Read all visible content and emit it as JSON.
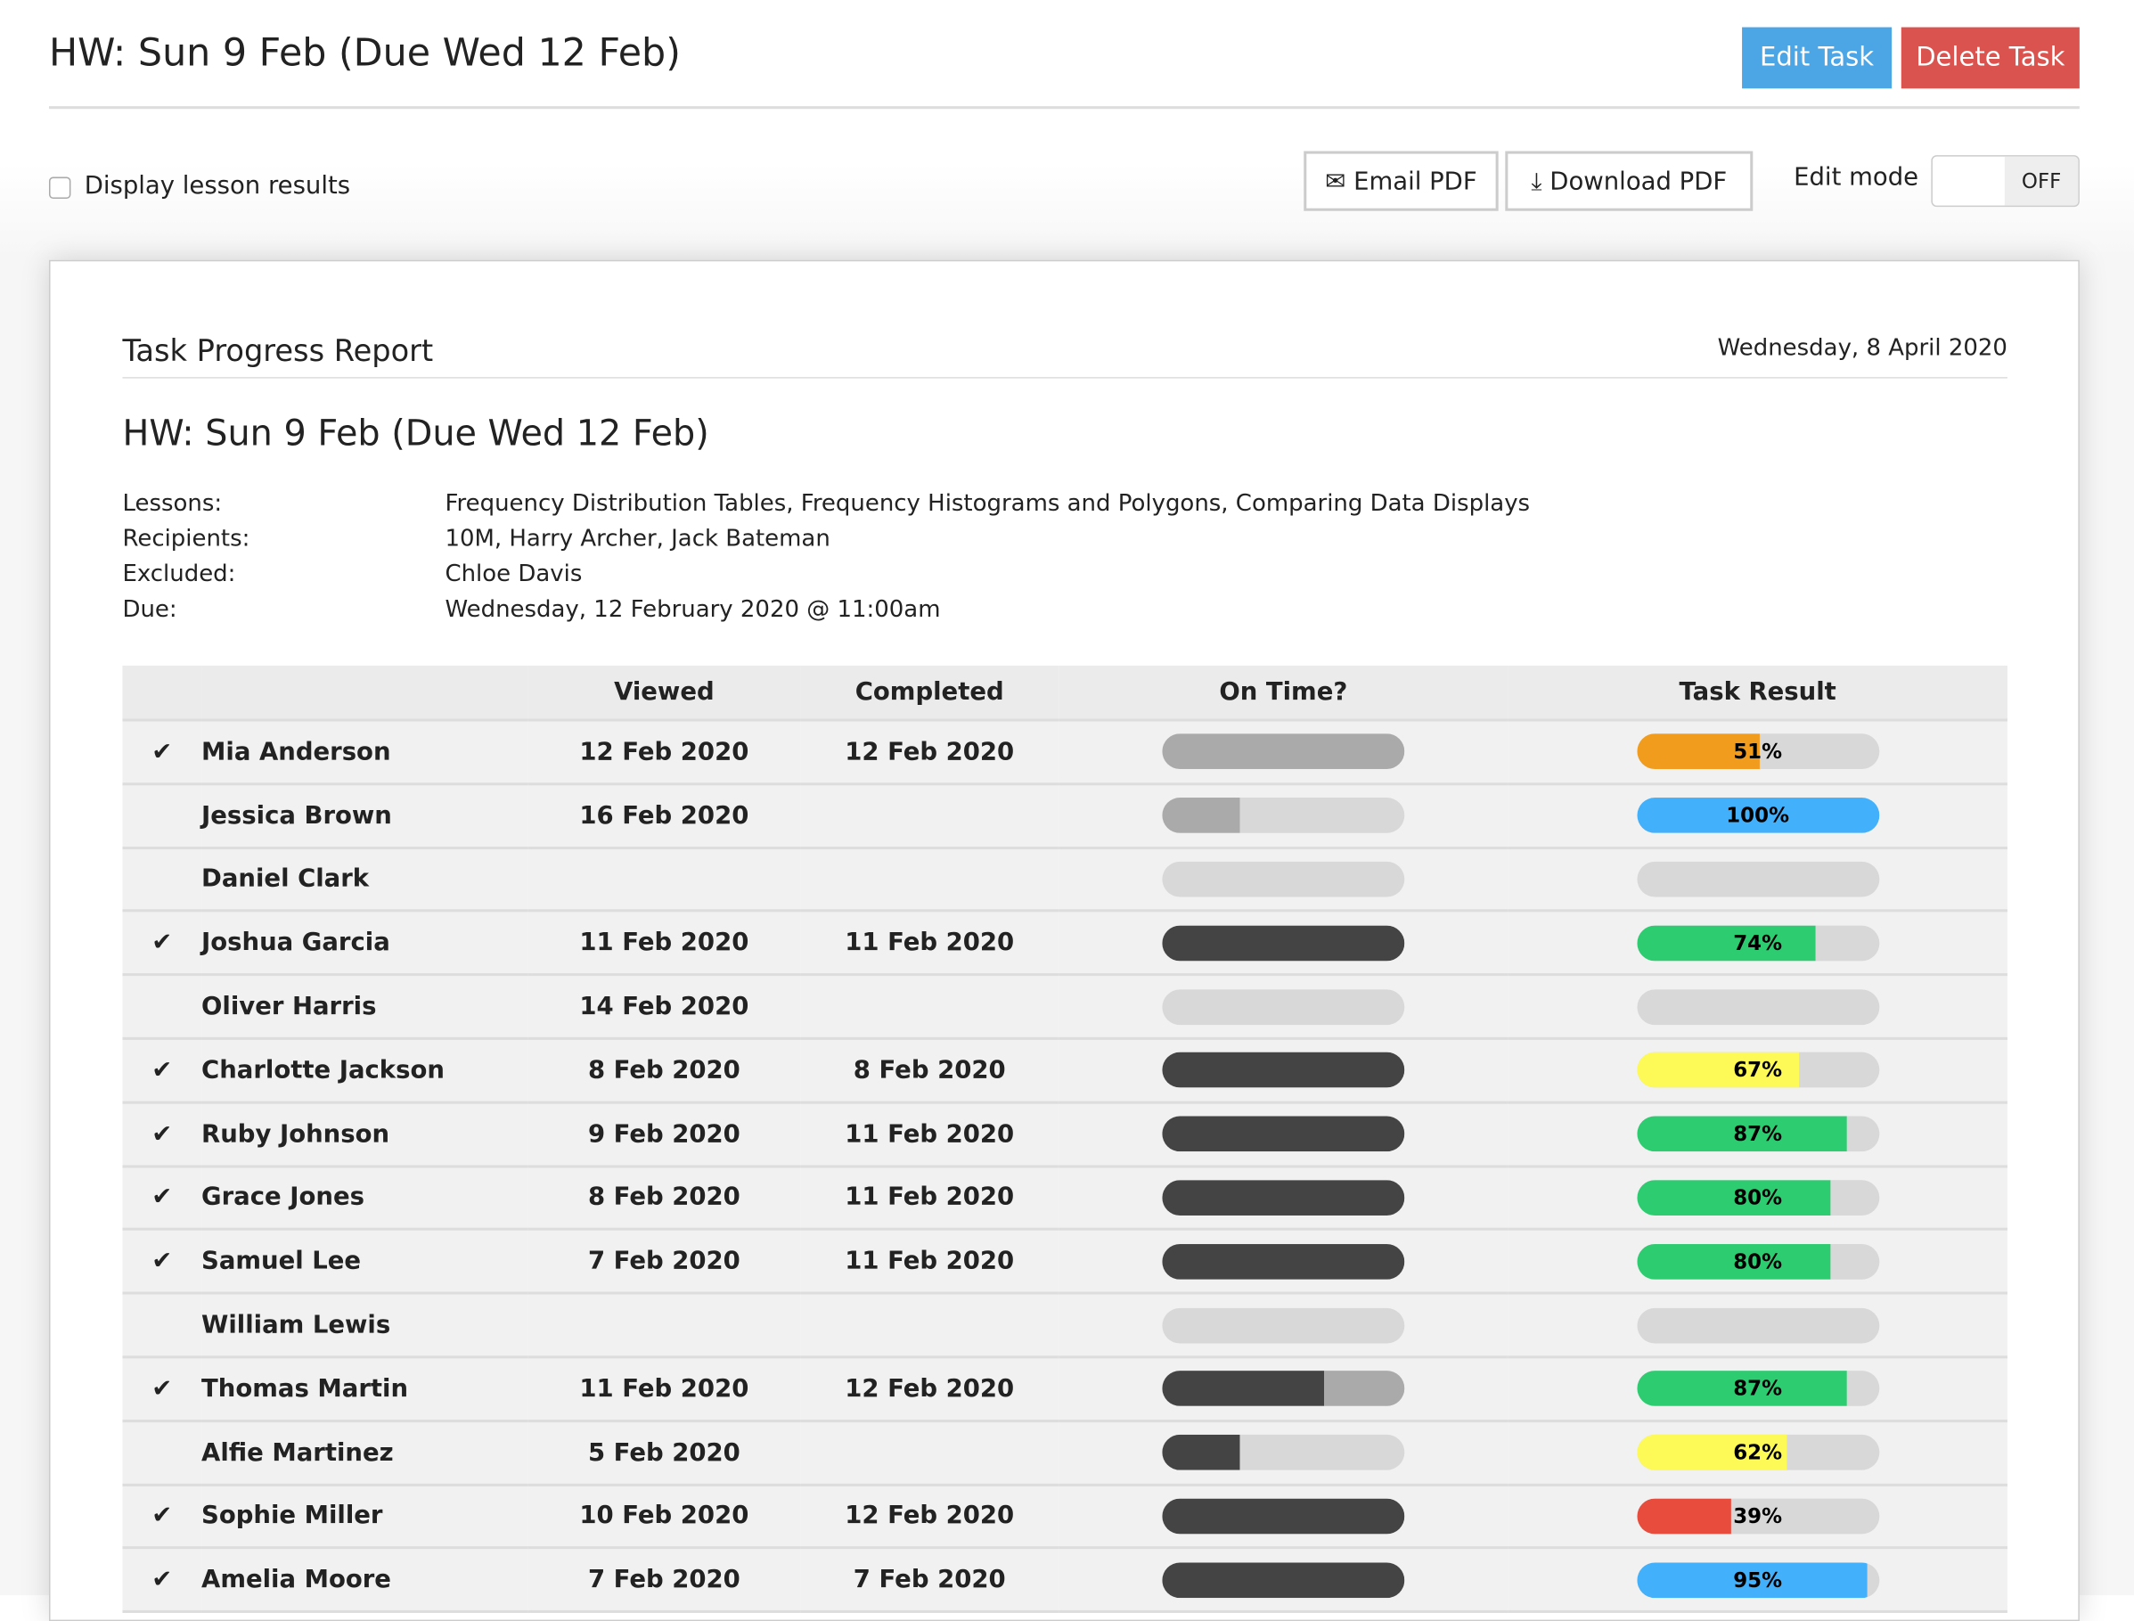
{
  "header": {
    "title": "HW: Sun 9 Feb (Due Wed 12 Feb)",
    "edit_label": "Edit Task",
    "delete_label": "Delete Task"
  },
  "toolbar": {
    "display_results_label": "Display lesson results",
    "email_label": "Email PDF",
    "download_label": "Download PDF",
    "edit_mode_label": "Edit mode",
    "edit_mode_state": "OFF"
  },
  "colors": {
    "edit": "#4ca6e6",
    "delete": "#da534f",
    "dark": "#444444",
    "grey": "#aaaaaa",
    "track": "#d8d8d8",
    "orange": "#f29c1e",
    "blue": "#42b0fb",
    "green": "#2ecc71",
    "yellow": "#fdf956",
    "red": "#e74c3c"
  },
  "report": {
    "heading": "Task Progress Report",
    "date": "Wednesday, 8 April 2020",
    "title": "HW: Sun 9 Feb (Due Wed 12 Feb)",
    "info": [
      {
        "label": "Lessons:",
        "value": "Frequency Distribution Tables, Frequency Histograms and Polygons, Comparing Data Displays"
      },
      {
        "label": "Recipients:",
        "value": "10M, Harry Archer, Jack Bateman"
      },
      {
        "label": "Excluded:",
        "value": "Chloe Davis"
      },
      {
        "label": "Due:",
        "value": "Wednesday, 12 February 2020 @ 11:00am"
      }
    ],
    "columns": [
      "",
      "",
      "Viewed",
      "Completed",
      "On Time?",
      "Task Result"
    ],
    "rows": [
      {
        "done": true,
        "name": "Mia Anderson",
        "viewed": "12 Feb 2020",
        "completed": "12 Feb 2020",
        "ontime": [
          0,
          1,
          0
        ],
        "result": "51%",
        "pct": 51,
        "color": "orange"
      },
      {
        "done": false,
        "name": "Jessica Brown",
        "viewed": "16 Feb 2020",
        "completed": "",
        "ontime": [
          0,
          0.32,
          0
        ],
        "result": "100%",
        "pct": 100,
        "color": "blue"
      },
      {
        "done": false,
        "name": "Daniel Clark",
        "viewed": "",
        "completed": "",
        "ontime": [
          0,
          0,
          0
        ],
        "result": "",
        "pct": 0,
        "color": "green"
      },
      {
        "done": true,
        "name": "Joshua Garcia",
        "viewed": "11 Feb 2020",
        "completed": "11 Feb 2020",
        "ontime": [
          1,
          0,
          0
        ],
        "result": "74%",
        "pct": 74,
        "color": "green"
      },
      {
        "done": false,
        "name": "Oliver Harris",
        "viewed": "14 Feb 2020",
        "completed": "",
        "ontime": [
          0,
          0,
          0
        ],
        "result": "",
        "pct": 0,
        "color": "green"
      },
      {
        "done": true,
        "name": "Charlotte Jackson",
        "viewed": "8 Feb 2020",
        "completed": "8 Feb 2020",
        "ontime": [
          1,
          0,
          0
        ],
        "result": "67%",
        "pct": 67,
        "color": "yellow"
      },
      {
        "done": true,
        "name": "Ruby Johnson",
        "viewed": "9 Feb 2020",
        "completed": "11 Feb 2020",
        "ontime": [
          1,
          0,
          0
        ],
        "result": "87%",
        "pct": 87,
        "color": "green"
      },
      {
        "done": true,
        "name": "Grace Jones",
        "viewed": "8 Feb 2020",
        "completed": "11 Feb 2020",
        "ontime": [
          1,
          0,
          0
        ],
        "result": "80%",
        "pct": 80,
        "color": "green"
      },
      {
        "done": true,
        "name": "Samuel Lee",
        "viewed": "7 Feb 2020",
        "completed": "11 Feb 2020",
        "ontime": [
          1,
          0,
          0
        ],
        "result": "80%",
        "pct": 80,
        "color": "green"
      },
      {
        "done": false,
        "name": "William Lewis",
        "viewed": "",
        "completed": "",
        "ontime": [
          0,
          0,
          0
        ],
        "result": "",
        "pct": 0,
        "color": "green"
      },
      {
        "done": true,
        "name": "Thomas Martin",
        "viewed": "11 Feb 2020",
        "completed": "12 Feb 2020",
        "ontime": [
          0.67,
          0.33,
          0
        ],
        "result": "87%",
        "pct": 87,
        "color": "green"
      },
      {
        "done": false,
        "name": "Alfie Martinez",
        "viewed": "5 Feb 2020",
        "completed": "",
        "ontime": [
          0.32,
          0,
          0
        ],
        "result": "62%",
        "pct": 62,
        "color": "yellow"
      },
      {
        "done": true,
        "name": "Sophie Miller",
        "viewed": "10 Feb 2020",
        "completed": "12 Feb 2020",
        "ontime": [
          1,
          0,
          0
        ],
        "result": "39%",
        "pct": 39,
        "color": "red"
      },
      {
        "done": true,
        "name": "Amelia Moore",
        "viewed": "7 Feb 2020",
        "completed": "7 Feb 2020",
        "ontime": [
          1,
          0,
          0
        ],
        "result": "95%",
        "pct": 95,
        "color": "blue"
      }
    ]
  }
}
